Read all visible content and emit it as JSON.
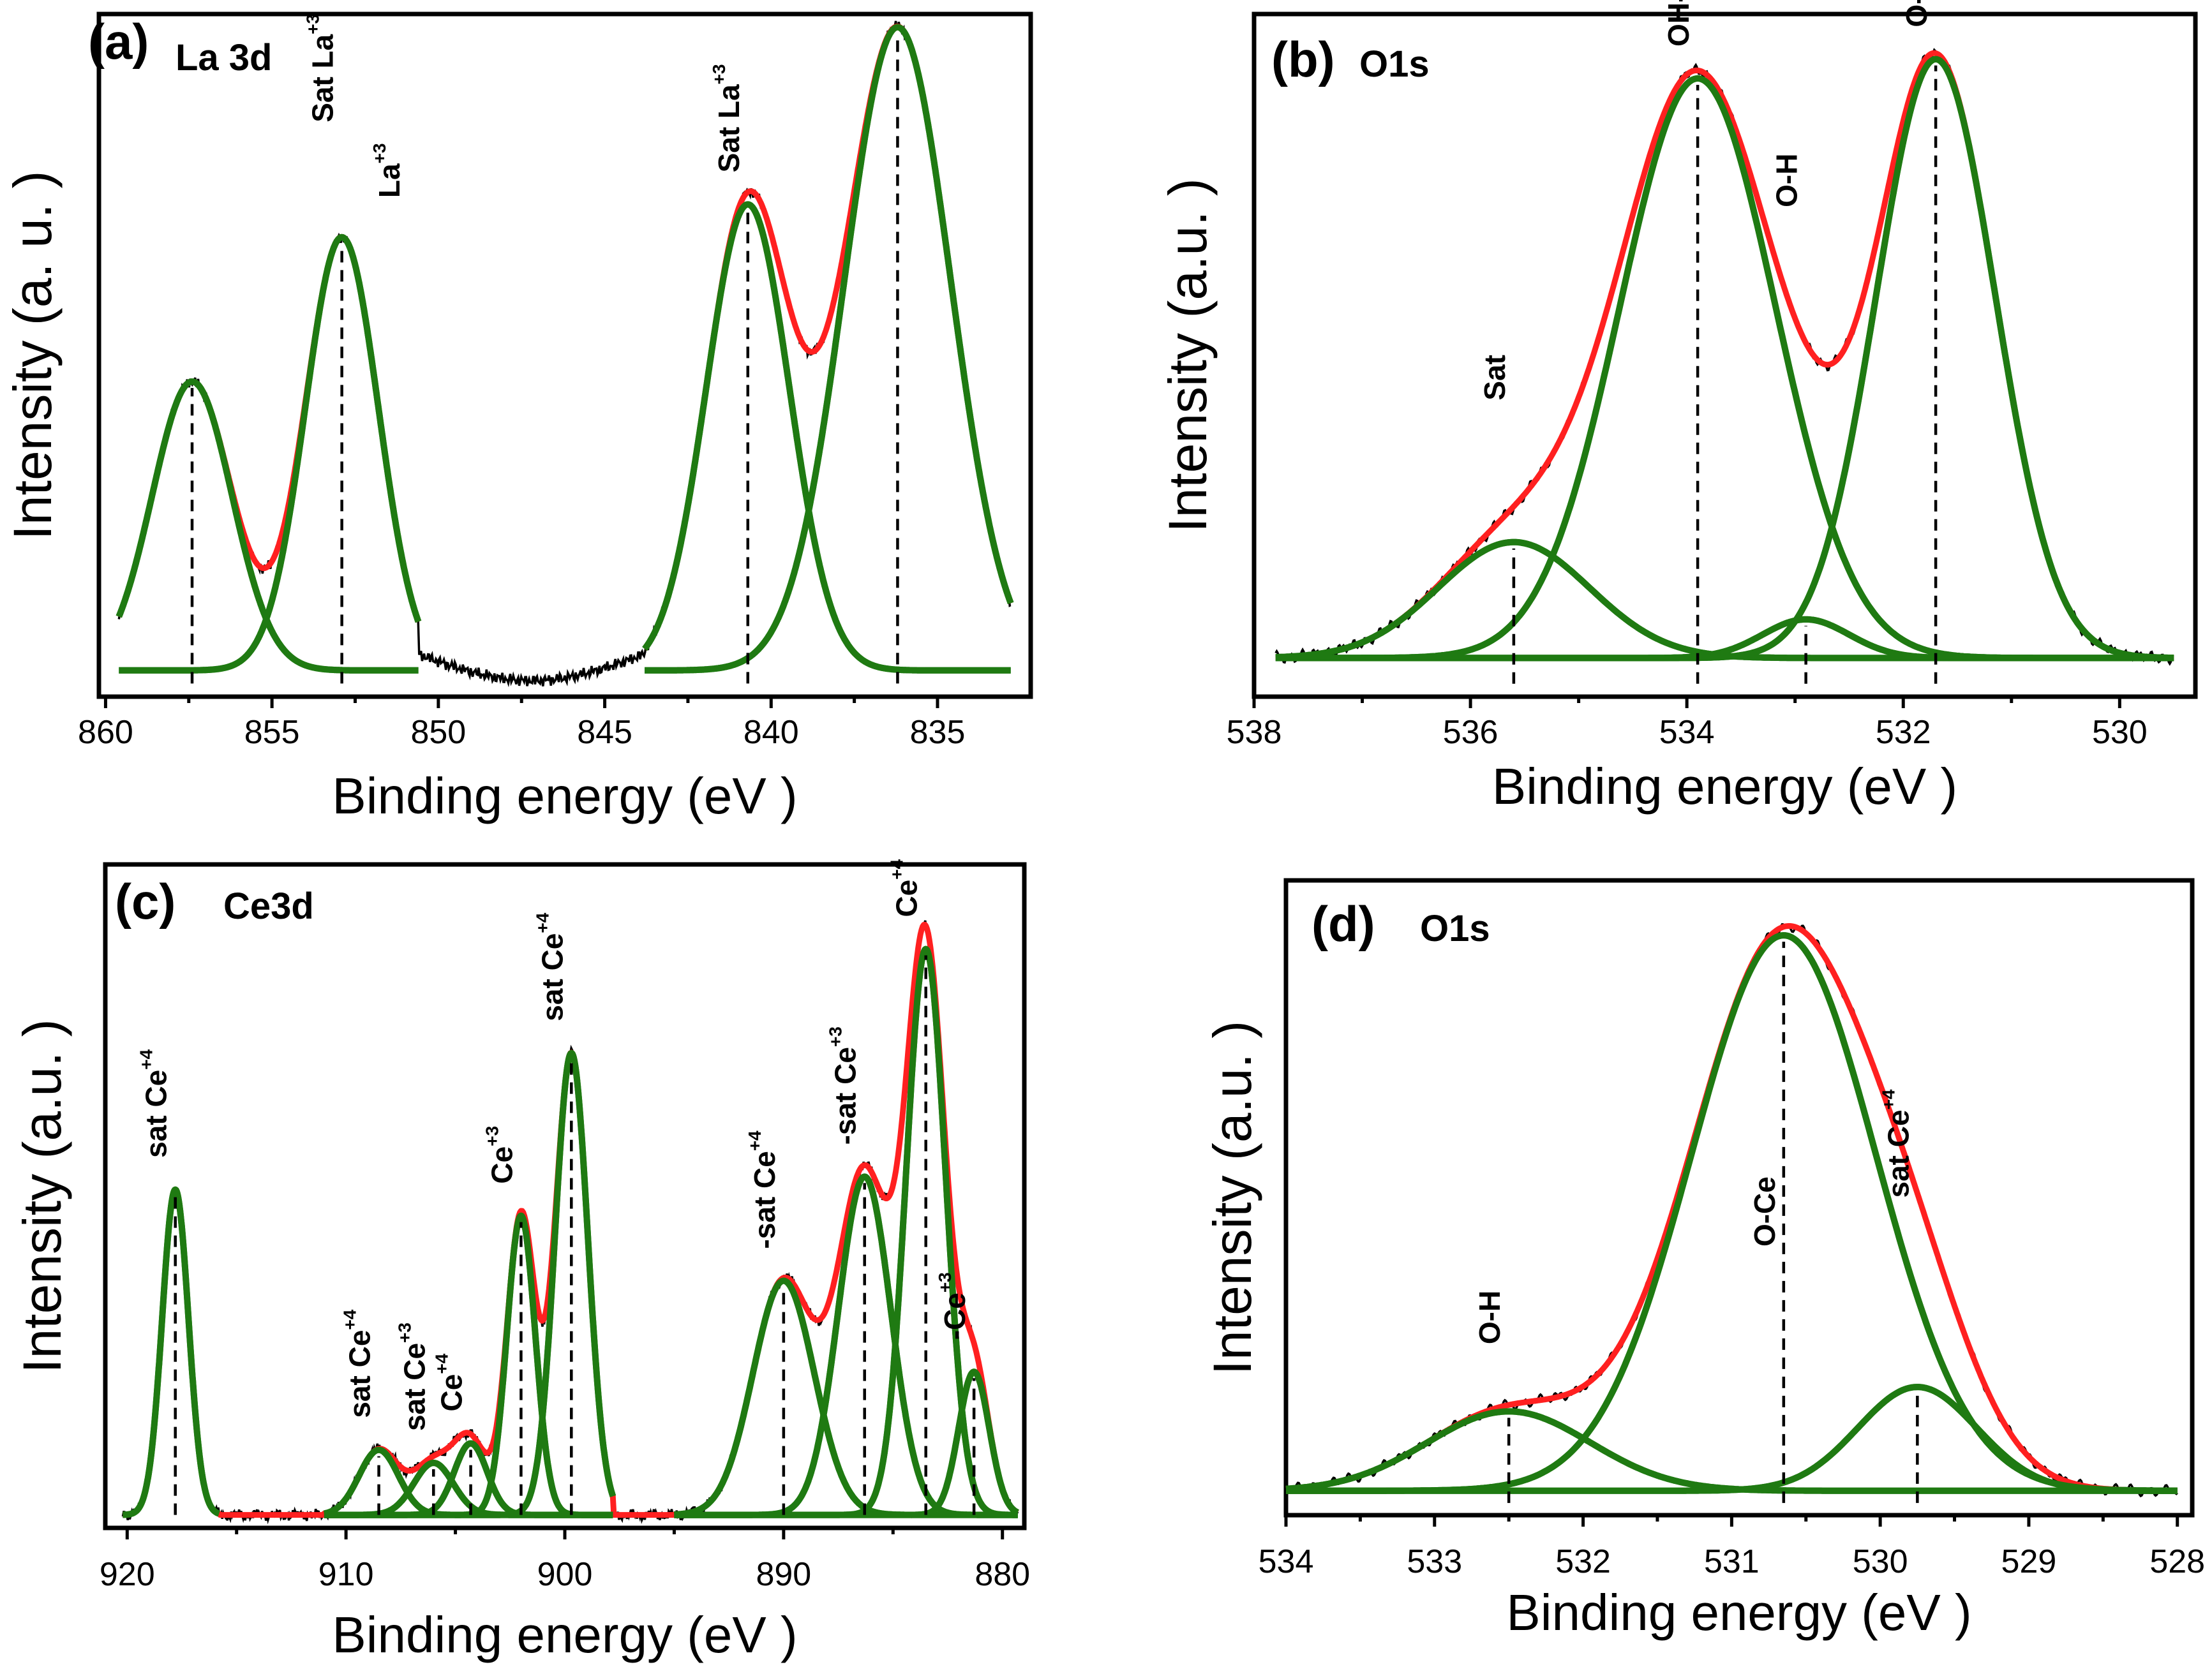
{
  "colors": {
    "raw": "#000000",
    "fit": "#ff2020",
    "component": "#1f7a12",
    "frame": "#000000"
  },
  "chart_data": [
    {
      "id": "a",
      "type": "line",
      "panel_tag": "(a)",
      "panel_name": "La 3d",
      "xlabel": "Binding energy   (eV )",
      "ylabel": "Intensity   (a. u. )",
      "xlim": [
        860.2,
        832.2
      ],
      "ylim": [
        -4,
        100
      ],
      "x_reversed": true,
      "xticks": [
        860,
        855,
        850,
        845,
        840,
        835
      ],
      "xtick_labels": [
        "860",
        "855",
        "850",
        "845",
        "840",
        "835"
      ],
      "components": [
        {
          "center": 857.4,
          "height": 44,
          "width": 1.2,
          "range": [
            859.6,
            850.6
          ]
        },
        {
          "center": 852.9,
          "height": 66,
          "width": 1.1,
          "range": [
            859.6,
            850.6
          ]
        },
        {
          "center": 840.7,
          "height": 71,
          "width": 1.25,
          "range": [
            843.8,
            832.8
          ]
        },
        {
          "center": 836.2,
          "height": 98,
          "width": 1.6,
          "range": [
            843.8,
            832.8
          ]
        }
      ],
      "fit_segments": [
        [
          859.6,
          850.6
        ],
        [
          843.8,
          832.8
        ]
      ],
      "raw_range": [
        850.6,
        843.8
      ],
      "peaks": [
        {
          "position": 857.4,
          "label": "",
          "sup": ""
        },
        {
          "position": 852.9,
          "label": "Sat La",
          "sup": "+3"
        },
        {
          "position": 850.9,
          "label": "La",
          "sup": "+3"
        },
        {
          "position": 840.7,
          "label": "Sat La",
          "sup": "+3"
        },
        {
          "position": 836.2,
          "label": "La",
          "sup": "+3"
        }
      ]
    },
    {
      "id": "b",
      "type": "line",
      "panel_tag": "(b)",
      "panel_name": "O1s",
      "xlabel": "Binding energy   (eV  )",
      "ylabel": "Intensity   (a.u.  )",
      "xlim": [
        538,
        529.3
      ],
      "ylim": [
        -6,
        100
      ],
      "x_reversed": true,
      "xticks": [
        538,
        536,
        534,
        532,
        530
      ],
      "xtick_labels": [
        "538",
        "536",
        "534",
        "532",
        "530"
      ],
      "components": [
        {
          "center": 535.6,
          "height": 18,
          "width": 0.7,
          "range": [
            537.8,
            529.5
          ]
        },
        {
          "center": 533.9,
          "height": 90,
          "width": 0.72,
          "range": [
            537.8,
            529.5
          ]
        },
        {
          "center": 532.9,
          "height": 6,
          "width": 0.4,
          "range": [
            537.8,
            529.5
          ]
        },
        {
          "center": 531.7,
          "height": 93,
          "width": 0.55,
          "range": [
            537.8,
            529.5
          ]
        }
      ],
      "fit_segments": [
        [
          537.8,
          529.5
        ]
      ],
      "raw_range": [
        537.8,
        529.5
      ],
      "peaks": [
        {
          "position": 535.6,
          "label": "Sat",
          "sup": ""
        },
        {
          "position": 533.9,
          "label": "OH-La",
          "sup": ""
        },
        {
          "position": 532.9,
          "label": "O-H",
          "sup": ""
        },
        {
          "position": 531.7,
          "label": "O-La",
          "sup": ""
        }
      ]
    },
    {
      "id": "c",
      "type": "line",
      "panel_tag": "(c)",
      "panel_name": "Ce3d",
      "xlabel": "Binding energy    (eV  )",
      "ylabel": "Intensity   (a.u.  )",
      "xlim": [
        921,
        879
      ],
      "ylim": [
        -2,
        100
      ],
      "x_reversed": true,
      "xticks": [
        920,
        910,
        900,
        890,
        880
      ],
      "xtick_labels": [
        "920",
        "910",
        "900",
        "890",
        "880"
      ],
      "components": [
        {
          "center": 917.8,
          "height": 50,
          "width": 0.6,
          "range": [
            920.2,
            915.8
          ]
        },
        {
          "center": 908.5,
          "height": 10,
          "width": 0.9,
          "range": [
            911.0,
            897.8
          ]
        },
        {
          "center": 906.0,
          "height": 8,
          "width": 0.9,
          "range": [
            911.0,
            897.8
          ]
        },
        {
          "center": 904.3,
          "height": 11,
          "width": 0.75,
          "range": [
            911.0,
            897.8
          ]
        },
        {
          "center": 902.0,
          "height": 46,
          "width": 0.65,
          "range": [
            911.0,
            897.8
          ]
        },
        {
          "center": 899.7,
          "height": 71,
          "width": 0.75,
          "range": [
            911.0,
            897.8
          ]
        },
        {
          "center": 890.0,
          "height": 36,
          "width": 1.4,
          "range": [
            895.0,
            879.3
          ]
        },
        {
          "center": 886.3,
          "height": 52,
          "width": 1.2,
          "range": [
            895.0,
            879.3
          ]
        },
        {
          "center": 883.5,
          "height": 87,
          "width": 0.9,
          "range": [
            895.0,
            879.3
          ]
        },
        {
          "center": 881.3,
          "height": 22,
          "width": 0.7,
          "range": [
            895.0,
            879.3
          ]
        }
      ],
      "fit_segments": [
        [
          920.2,
          879.3
        ]
      ],
      "raw_range": [
        920.2,
        879.3
      ],
      "peaks": [
        {
          "position": 917.8,
          "label": "sat Ce",
          "sup": "+4"
        },
        {
          "position": 908.5,
          "label": "sat Ce",
          "sup": "+4"
        },
        {
          "position": 906.0,
          "label": "sat Ce",
          "sup": "+3"
        },
        {
          "position": 904.3,
          "label": "Ce",
          "sup": "+4"
        },
        {
          "position": 902.0,
          "label": "Ce",
          "sup": "+3"
        },
        {
          "position": 899.7,
          "label": "sat Ce",
          "sup": "+4"
        },
        {
          "position": 890.0,
          "label": "-sat Ce",
          "sup": "+4"
        },
        {
          "position": 886.3,
          "label": "-sat Ce",
          "sup": "+3"
        },
        {
          "position": 883.5,
          "label": "Ce",
          "sup": "+4"
        },
        {
          "position": 881.3,
          "label": "-Ce",
          "sup": "+3"
        }
      ]
    },
    {
      "id": "d",
      "type": "line",
      "panel_tag": "(d)",
      "panel_name": "O1s",
      "xlabel": "Binding energy   (eV  )",
      "ylabel": "Intensity   (a.u.  )",
      "xlim": [
        534,
        527.9
      ],
      "ylim": [
        -4,
        100
      ],
      "x_reversed": true,
      "xticks": [
        534,
        533,
        532,
        531,
        530,
        529,
        528
      ],
      "xtick_labels": [
        "534",
        "533",
        "532",
        "531",
        "530",
        "529",
        "528"
      ],
      "components": [
        {
          "center": 532.5,
          "height": 13,
          "width": 0.55,
          "range": [
            534.0,
            528.0
          ]
        },
        {
          "center": 530.65,
          "height": 91,
          "width": 0.62,
          "range": [
            534.0,
            528.0
          ]
        },
        {
          "center": 529.75,
          "height": 17,
          "width": 0.4,
          "range": [
            534.0,
            528.0
          ]
        }
      ],
      "fit_segments": [
        [
          534.0,
          528.0
        ]
      ],
      "raw_range": [
        534.0,
        528.0
      ],
      "peaks": [
        {
          "position": 532.5,
          "label": "O-H",
          "sup": ""
        },
        {
          "position": 530.65,
          "label": "O-Ce",
          "sup": ""
        },
        {
          "position": 529.75,
          "label": "sat Ce",
          "sup": "+4"
        }
      ]
    }
  ]
}
